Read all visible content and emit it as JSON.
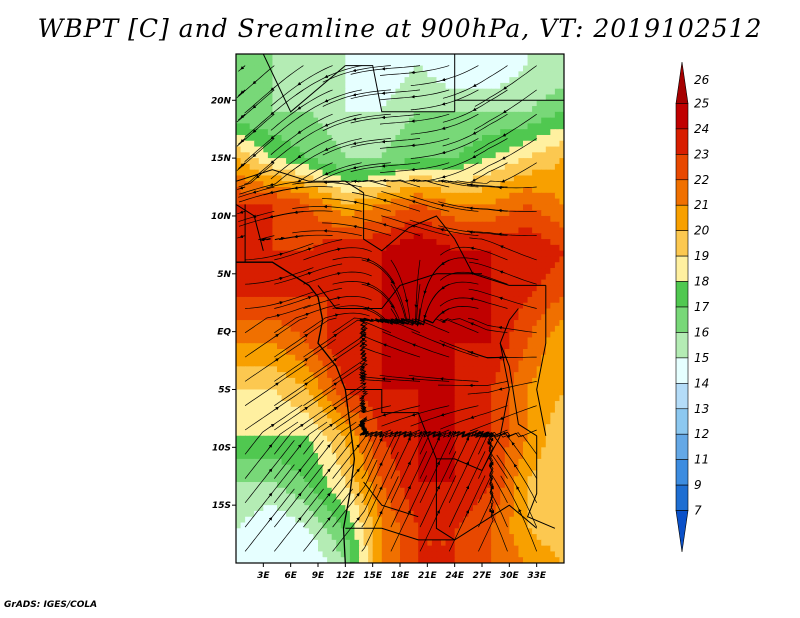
{
  "footer": "GrADS: IGES/COLA",
  "chart_data": {
    "type": "heatmap",
    "title": "WBPT [C] and Sreamline at 900hPa, VT: 2019102512",
    "xlabel": "",
    "ylabel": "",
    "xlim": [
      0,
      36
    ],
    "ylim": [
      -20,
      24
    ],
    "x_ticks": [
      {
        "value": 3,
        "label": "3E"
      },
      {
        "value": 6,
        "label": "6E"
      },
      {
        "value": 9,
        "label": "9E"
      },
      {
        "value": 12,
        "label": "12E"
      },
      {
        "value": 15,
        "label": "15E"
      },
      {
        "value": 18,
        "label": "18E"
      },
      {
        "value": 21,
        "label": "21E"
      },
      {
        "value": 24,
        "label": "24E"
      },
      {
        "value": 27,
        "label": "27E"
      },
      {
        "value": 30,
        "label": "30E"
      },
      {
        "value": 33,
        "label": "33E"
      }
    ],
    "y_ticks": [
      {
        "value": 20,
        "label": "20N"
      },
      {
        "value": 15,
        "label": "15N"
      },
      {
        "value": 10,
        "label": "10N"
      },
      {
        "value": 5,
        "label": "5N"
      },
      {
        "value": 0,
        "label": "EQ"
      },
      {
        "value": -5,
        "label": "5S"
      },
      {
        "value": -10,
        "label": "10S"
      },
      {
        "value": -15,
        "label": "15S"
      }
    ],
    "colorbar": {
      "levels": [
        "26",
        "25",
        "24",
        "23",
        "22",
        "21",
        "20",
        "19",
        "18",
        "17",
        "16",
        "15",
        "14",
        "13",
        "12",
        "11",
        "9",
        "7"
      ],
      "colors": [
        "#a50000",
        "#c00000",
        "#d81e00",
        "#e84800",
        "#f07000",
        "#f8a000",
        "#fcc850",
        "#fff0a0",
        "#50c850",
        "#78d878",
        "#b4ecb4",
        "#e6ffff",
        "#b4dcf8",
        "#8cc8f0",
        "#64a8e6",
        "#3c8ce0",
        "#1e6ed2",
        "#0a50c8"
      ],
      "extend": "both"
    },
    "wbpt_field": {
      "lat": [
        23,
        19,
        15,
        11,
        7,
        3,
        -1,
        -5,
        -9,
        -13,
        -17,
        -20
      ],
      "lon": [
        0,
        4,
        8,
        12,
        16,
        20,
        24,
        28,
        32,
        36
      ],
      "values": [
        [
          17,
          17,
          16,
          16,
          15,
          16,
          15,
          15,
          16,
          16
        ],
        [
          17,
          17,
          17,
          16,
          16,
          17,
          17,
          17,
          17,
          18
        ],
        [
          21,
          19,
          18,
          17,
          17,
          18,
          18,
          19,
          20,
          21
        ],
        [
          24,
          24,
          23,
          21,
          22,
          23,
          22,
          22,
          23,
          22
        ],
        [
          25,
          24,
          24,
          25,
          25,
          26,
          25,
          25,
          25,
          24
        ],
        [
          24,
          24,
          24,
          24,
          25,
          25,
          25,
          25,
          24,
          23
        ],
        [
          22,
          22,
          23,
          25,
          25,
          25,
          25,
          25,
          23,
          21
        ],
        [
          20,
          20,
          21,
          24,
          25,
          25,
          25,
          24,
          22,
          21
        ],
        [
          19,
          19,
          19,
          21,
          24,
          25,
          25,
          24,
          22,
          20
        ],
        [
          17,
          17,
          18,
          20,
          23,
          25,
          25,
          24,
          21,
          20
        ],
        [
          16,
          15,
          16,
          18,
          22,
          24,
          24,
          23,
          21,
          20
        ],
        [
          16,
          15,
          15,
          17,
          22,
          24,
          24,
          23,
          22,
          21
        ]
      ]
    }
  }
}
